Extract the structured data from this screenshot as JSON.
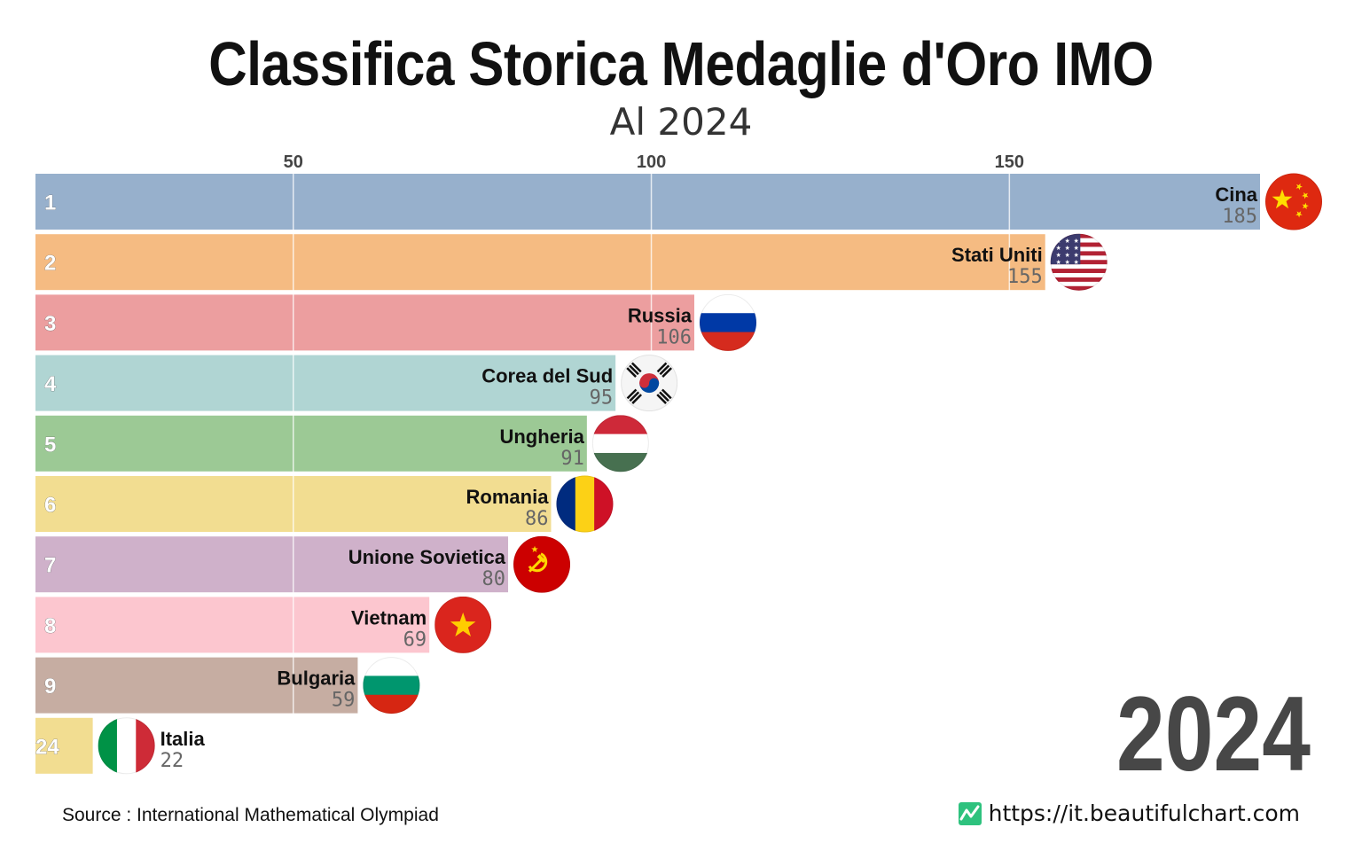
{
  "title": "Classifica Storica Medaglie d'Oro IMO",
  "subtitle": "Al 2024",
  "year": "2024",
  "source": "Source : International Mathematical Olympiad",
  "website": "https://it.beautifulchart.com",
  "chart_data": {
    "type": "bar",
    "orientation": "horizontal",
    "xlim": [
      14,
      185
    ],
    "x_ticks": [
      50,
      100,
      150
    ],
    "grid": true,
    "categories": [
      "Cina",
      "Stati Uniti",
      "Russia",
      "Corea del Sud",
      "Ungheria",
      "Romania",
      "Unione Sovietica",
      "Vietnam",
      "Bulgaria",
      "Italia"
    ],
    "ranks": [
      "1",
      "2",
      "3",
      "4",
      "5",
      "6",
      "7",
      "8",
      "9",
      "24"
    ],
    "values": [
      185,
      155,
      106,
      95,
      91,
      86,
      80,
      69,
      59,
      22
    ],
    "colors": [
      "#97b0cc",
      "#f5bb82",
      "#ec9e9f",
      "#b0d5d3",
      "#9cc995",
      "#f2dd91",
      "#cfb1ca",
      "#fcc6cf",
      "#c6ada2",
      "#f2dd91"
    ],
    "flags": [
      "china-flag",
      "usa-flag",
      "russia-flag",
      "south-korea-flag",
      "hungary-flag",
      "romania-flag",
      "soviet-union-flag",
      "vietnam-flag",
      "bulgaria-flag",
      "italy-flag"
    ]
  }
}
